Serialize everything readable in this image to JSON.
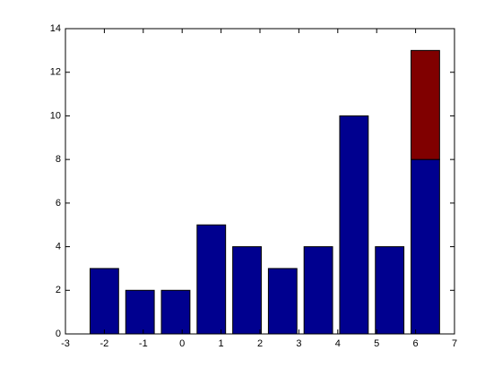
{
  "chart_data": {
    "type": "bar",
    "stacked": true,
    "x": [
      -2,
      -1.0833,
      -0.1667,
      0.75,
      1.6667,
      2.5833,
      3.5,
      4.4167,
      5.3333,
      6.25
    ],
    "bar_width": 0.7333,
    "series": [
      {
        "color": "#00008f",
        "values": [
          3,
          2,
          2,
          5,
          4,
          3,
          4,
          10,
          4,
          8
        ]
      },
      {
        "color": "#800000",
        "values": [
          0,
          0,
          0,
          0,
          0,
          0,
          0,
          0,
          0,
          5
        ]
      }
    ],
    "xlim": [
      -3,
      7
    ],
    "xticks": [
      -3,
      -2,
      -1,
      0,
      1,
      2,
      3,
      4,
      5,
      6,
      7
    ],
    "ylim": [
      0,
      14
    ],
    "yticks": [
      0,
      2,
      4,
      6,
      8,
      10,
      12,
      14
    ],
    "grid": false
  }
}
